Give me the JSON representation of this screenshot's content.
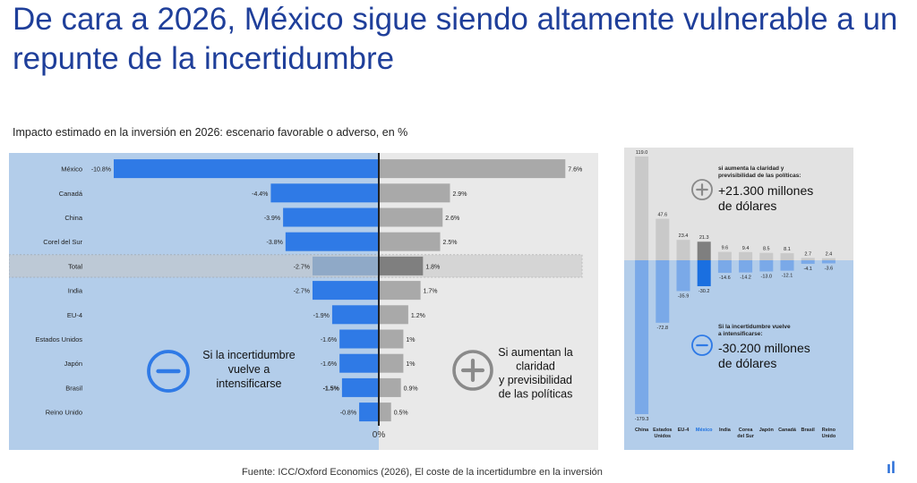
{
  "title": "De cara a 2026, México sigue siendo altamente vulnerable a un repunte de la incertidumbre",
  "subtitle": "Impacto estimado en la inversión en 2026: escenario favorable o adverso, en %",
  "source": "Fuente: ICC/Oxford Economics (2026), El coste de la incertidumbre en la inversión",
  "colors": {
    "left_panel": "#b3cdea",
    "right_panel": "#e9e9e9",
    "negative_bar": "#2f7ae6",
    "positive_bar": "#a9a9a9",
    "highlight_negative": "#1a6fe0",
    "highlight_positive": "#7f7f7f",
    "axis": "#222222"
  },
  "chart_data": [
    {
      "type": "bar",
      "orientation": "horizontal-diverging",
      "categories": [
        "México",
        "Canadá",
        "China",
        "Corel del Sur",
        "Total",
        "India",
        "EU-4",
        "Estados Unidos",
        "Japón",
        "Brasil",
        "Reino Unido"
      ],
      "negative_labels": [
        "-10.8%",
        "-4.4%",
        "-3.9%",
        "-3.8%",
        "-2.7%",
        "-2.7%",
        "-1.9%",
        "-1.6%",
        "-1.6%",
        "-1.5%",
        "-0.8%"
      ],
      "positive_labels": [
        "7.6%",
        "2.9%",
        "2.6%",
        "2.5%",
        "1.8%",
        "1.7%",
        "1.2%",
        "1%",
        "1%",
        "0.9%",
        "0.5%"
      ],
      "series": [
        {
          "values": [
            -10.8,
            -4.4,
            -3.9,
            -3.8,
            -2.7,
            -2.7,
            -1.9,
            -1.6,
            -1.6,
            -1.5,
            -0.8
          ]
        },
        {
          "values": [
            7.6,
            2.9,
            2.6,
            2.5,
            1.8,
            1.7,
            1.2,
            1.0,
            1.0,
            0.9,
            0.5
          ]
        }
      ],
      "highlighted_category": "Total",
      "zero_label": "0%",
      "xlim": [
        -11.8,
        9.2
      ],
      "left_annotation": [
        "Si la incertidumbre",
        "vuelve a",
        "intensificarse"
      ],
      "right_annotation": [
        "Si aumentan la",
        "claridad",
        "y previsibilidad",
        "de las políticas"
      ],
      "left_icon": "minus-circle-icon",
      "right_icon": "plus-circle-icon"
    },
    {
      "type": "bar",
      "orientation": "vertical-diverging",
      "categories": [
        [
          "China"
        ],
        [
          "Estados",
          "Unidos"
        ],
        [
          "EU-4"
        ],
        [
          "México"
        ],
        [
          "India"
        ],
        [
          "Corea",
          "del Sur"
        ],
        [
          "Japón"
        ],
        [
          "Canadá"
        ],
        [
          "Brasil"
        ],
        [
          "Reino",
          "Unido"
        ]
      ],
      "positive_labels": [
        "119.0",
        "47.6",
        "23.4",
        "21.3",
        "9.6",
        "9.4",
        "8.5",
        "8.1",
        "2.7",
        "2.4"
      ],
      "negative_labels": [
        "-179.3",
        "-72.8",
        "-35.9",
        "-30.2",
        "-14.6",
        "-14.2",
        "-13.0",
        "-12.1",
        "-4.1",
        "-3.6"
      ],
      "series": [
        {
          "values": [
            119.0,
            47.6,
            23.4,
            21.3,
            9.6,
            9.4,
            8.5,
            8.1,
            2.7,
            2.4
          ]
        },
        {
          "values": [
            -179.3,
            -72.8,
            -35.9,
            -30.2,
            -14.6,
            -14.2,
            -13.0,
            -12.1,
            -4.1,
            -3.6
          ]
        }
      ],
      "highlighted_category": "México",
      "ylim": [
        -195,
        130
      ],
      "top_annotation": {
        "lead": [
          "si aumenta la claridad y",
          "previsibilidad de las políticas:"
        ],
        "value": [
          "+21.300 millones",
          "de dólares"
        ]
      },
      "bottom_annotation": {
        "lead": [
          "Si la incertidumbre vuelve",
          "a intensificarse:"
        ],
        "value": [
          "-30.200 millones",
          "de dólares"
        ]
      }
    }
  ]
}
